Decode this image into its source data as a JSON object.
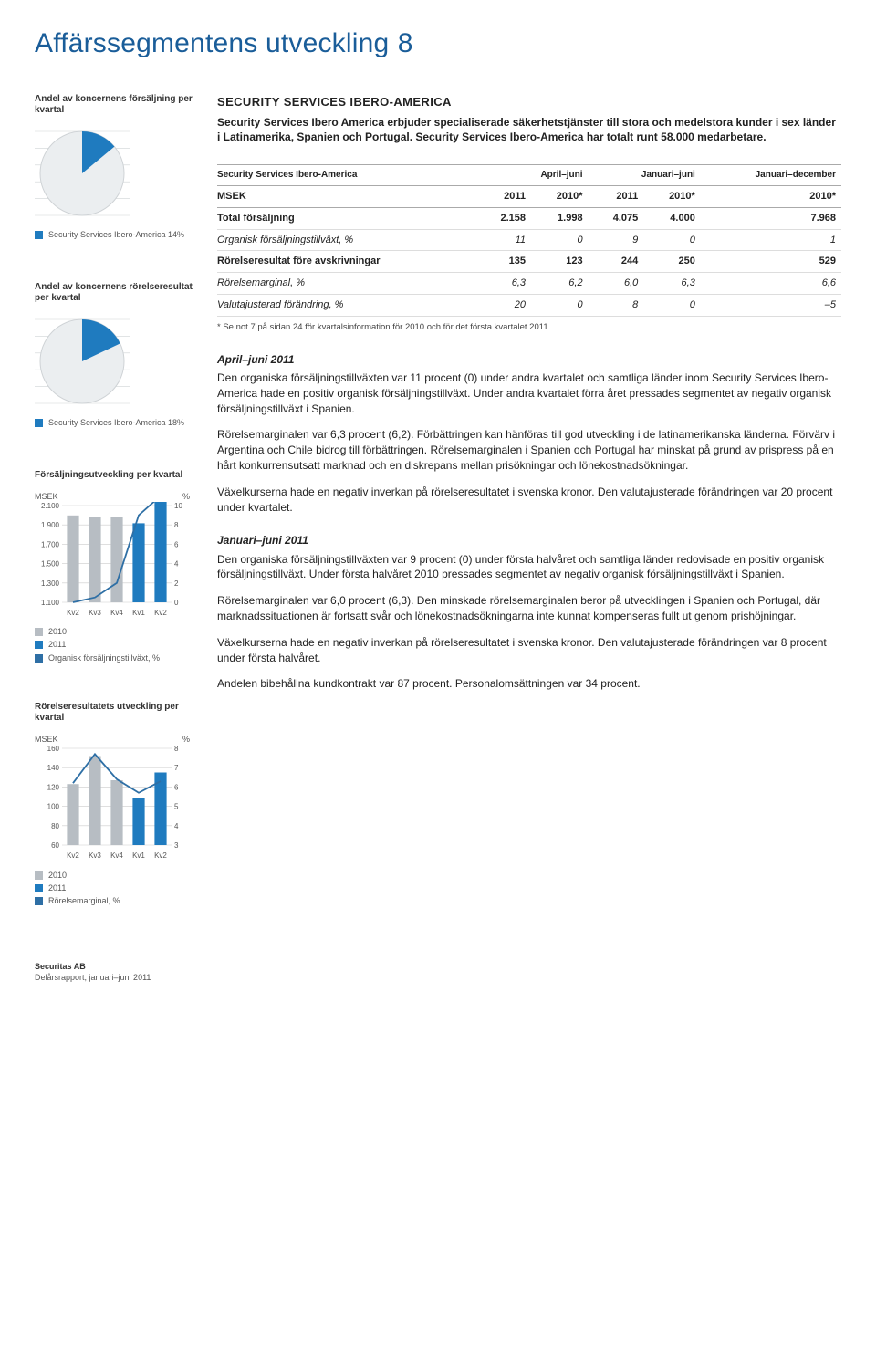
{
  "page": {
    "title": "Affärssegmentens utveckling",
    "number": "8"
  },
  "intro": {
    "heading": "SECURITY SERVICES IBERO-AMERICA",
    "text": "Security Services Ibero America erbjuder specialiserade säkerhetstjänster till stora och medelstora kunder i sex länder i Latinamerika, Spanien och Portugal. Security Services Ibero-America har totalt runt 58.000 medarbetare."
  },
  "sidebar": {
    "share_sales": {
      "title": "Andel av koncernens försäljning per kvartal",
      "pie": {
        "bg": "#ffffff",
        "ring": "#cfd3d6",
        "segment_color": "#1f7bbf",
        "rest_color": "#ebeef0",
        "percent": 14,
        "start_deg": -90
      },
      "legend": [
        {
          "label": "Security Services Ibero-America 14%",
          "color": "#1f7bbf"
        }
      ]
    },
    "share_result": {
      "title": "Andel av koncernens rörelseresultat per kvartal",
      "pie": {
        "bg": "#ffffff",
        "ring": "#cfd3d6",
        "segment_color": "#1f7bbf",
        "rest_color": "#ebeef0",
        "percent": 18,
        "start_deg": -90
      },
      "legend": [
        {
          "label": "Security Services Ibero-America 18%",
          "color": "#1f7bbf"
        }
      ]
    },
    "sales_dev": {
      "title": "Försäljningsutveckling per kvartal",
      "left_label": "MSEK",
      "right_label": "%",
      "x_labels": [
        "Kv2",
        "Kv3",
        "Kv4",
        "Kv1",
        "Kv2"
      ],
      "y_left": {
        "min": 1100,
        "max": 2100,
        "ticks": [
          "2.100",
          "1.900",
          "1.700",
          "1.500",
          "1.300",
          "1.100"
        ]
      },
      "y_right": {
        "min": 0,
        "max": 10,
        "ticks": [
          "10",
          "8",
          "6",
          "4",
          "2",
          "0"
        ]
      },
      "bars_2010": {
        "color": "#b7bdc3",
        "values": [
          1998,
          1978,
          1984,
          0,
          0
        ]
      },
      "bars_2011": {
        "color": "#1f7bbf",
        "values": [
          0,
          0,
          0,
          1917,
          2158
        ]
      },
      "line": {
        "color": "#2e6fa5",
        "values": [
          0,
          0.5,
          2,
          9,
          11
        ]
      },
      "legend": [
        {
          "label": "2010",
          "color": "#b7bdc3"
        },
        {
          "label": "2011",
          "color": "#1f7bbf"
        },
        {
          "label": "Organisk försäljningstillväxt, %",
          "color": "#2e6fa5"
        }
      ]
    },
    "result_dev": {
      "title": "Rörelseresultatets utveckling per kvartal",
      "left_label": "MSEK",
      "right_label": "%",
      "x_labels": [
        "Kv2",
        "Kv3",
        "Kv4",
        "Kv1",
        "Kv2"
      ],
      "y_left": {
        "min": 60,
        "max": 160,
        "ticks": [
          "160",
          "140",
          "120",
          "100",
          "80",
          "60"
        ]
      },
      "y_right": {
        "min": 3,
        "max": 8,
        "ticks": [
          "8",
          "7",
          "6",
          "5",
          "4",
          "3"
        ]
      },
      "bars_2010": {
        "color": "#b7bdc3",
        "values": [
          123,
          152,
          127,
          0,
          0
        ]
      },
      "bars_2011": {
        "color": "#1f7bbf",
        "values": [
          0,
          0,
          0,
          109,
          135
        ]
      },
      "line": {
        "color": "#2e6fa5",
        "values": [
          6.2,
          7.7,
          6.4,
          5.7,
          6.3
        ]
      },
      "legend": [
        {
          "label": "2010",
          "color": "#b7bdc3"
        },
        {
          "label": "2011",
          "color": "#1f7bbf"
        },
        {
          "label": "Rörelsemarginal, %",
          "color": "#2e6fa5"
        }
      ]
    }
  },
  "table": {
    "title": "Security Services Ibero-America",
    "groups": [
      "April–juni",
      "Januari–juni",
      "Januari–december"
    ],
    "sub": [
      "MSEK",
      "2011",
      "2010*",
      "2011",
      "2010*",
      "2010*"
    ],
    "rows": [
      {
        "label": "Total försäljning",
        "cells": [
          "2.158",
          "1.998",
          "4.075",
          "4.000",
          "7.968"
        ],
        "bold": true
      },
      {
        "label": "Organisk försäljningstillväxt, %",
        "cells": [
          "11",
          "0",
          "9",
          "0",
          "1"
        ],
        "italic": true
      },
      {
        "label": "Rörelseresultat före avskrivningar",
        "cells": [
          "135",
          "123",
          "244",
          "250",
          "529"
        ],
        "bold": true
      },
      {
        "label": "Rörelsemarginal, %",
        "cells": [
          "6,3",
          "6,2",
          "6,0",
          "6,3",
          "6,6"
        ],
        "italic": true
      },
      {
        "label": "Valutajusterad förändring, %",
        "cells": [
          "20",
          "0",
          "8",
          "0",
          "–5"
        ],
        "italic": true
      }
    ],
    "footnote": "* Se not 7 på sidan 24 för kvartalsinformation för 2010 och för det första kvartalet 2011."
  },
  "body": {
    "s1_h": "April–juni 2011",
    "s1_p1": "Den organiska försäljningstillväxten var 11 procent (0) under andra kvartalet och samtliga länder inom Security Services Ibero-America hade en positiv organisk försäljningstillväxt. Under andra kvartalet förra året pressades segmentet av negativ organisk försäljningstillväxt i Spanien.",
    "s1_p2": "Rörelsemarginalen var 6,3 procent (6,2). Förbättringen kan hänföras till god utveckling i de latinamerikanska länderna. Förvärv i Argentina och Chile bidrog till förbättringen. Rörelsemarginalen i Spanien och Portugal har minskat på grund av prispress på en hårt konkurrensutsatt marknad och en diskrepans mellan prisökningar och lönekostnadsökningar.",
    "s1_p3": "Växelkurserna hade en negativ inverkan på rörelseresultatet i svenska kronor. Den valutajusterade förändringen var 20 procent under kvartalet.",
    "s2_h": "Januari–juni 2011",
    "s2_p1": "Den organiska försäljningstillväxten var 9 procent (0) under första halvåret och samtliga länder redovisade en positiv organisk försäljningstillväxt. Under första halvåret 2010 pressades segmentet av negativ organisk försäljningstillväxt i Spanien.",
    "s2_p2": "Rörelsemarginalen var 6,0 procent (6,3). Den minskade rörelsemarginalen beror på utvecklingen i Spanien och Portugal, där marknadssituationen är fortsatt svår och lönekostnadsökningarna inte kunnat kompenseras fullt ut genom prishöjningar.",
    "s2_p3": "Växelkurserna hade en negativ inverkan på rörelseresultatet i svenska kronor. Den valutajusterade förändringen var 8 procent under första halvåret.",
    "s2_p4": "Andelen bibehållna kundkontrakt var 87 procent. Personalomsättningen var 34 procent."
  },
  "footer": {
    "company": "Securitas AB",
    "report": "Delårsrapport, januari–juni 2011"
  }
}
